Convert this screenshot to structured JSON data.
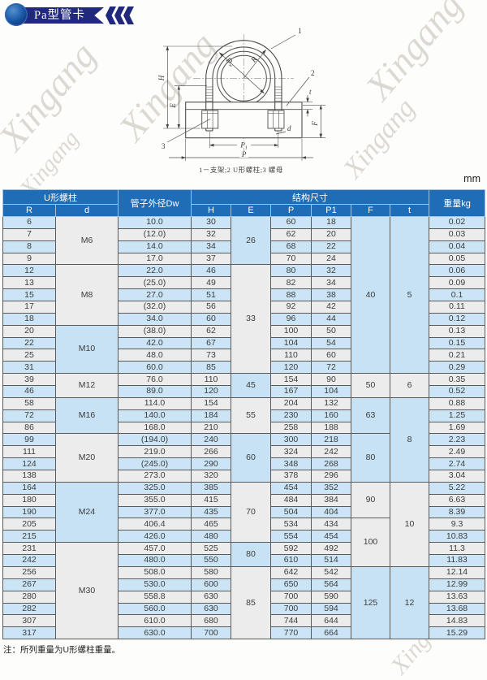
{
  "page": {
    "title": "Pa型管卡",
    "unit_label": "mm",
    "note": "注：所列重量为U形螺柱重量。",
    "watermark": "Xingang"
  },
  "diagram": {
    "caption": "1－支架;2  U形螺柱;3  螺母",
    "labels": {
      "h": "H",
      "e": "E",
      "dw": "D",
      "dw_sub": "w",
      "r": "R",
      "p": "P",
      "p1": "P",
      "p1_sub": "1",
      "d": "d",
      "t": "t",
      "f": "F",
      "n1": "1",
      "n2": "2",
      "n3": "3"
    }
  },
  "table": {
    "header": {
      "u_bolt": "U形螺柱",
      "pipe_od": "管子外径Dw",
      "struct": "结构尺寸",
      "weight": "重量kg",
      "sub": [
        "R",
        "d",
        "H",
        "E",
        "P",
        "P1",
        "F",
        "t"
      ]
    },
    "rows": [
      [
        "6",
        "10.0",
        "30",
        "60",
        "18",
        "0.02"
      ],
      [
        "7",
        "(12.0)",
        "32",
        "62",
        "20",
        "0.03"
      ],
      [
        "8",
        "14.0",
        "34",
        "68",
        "22",
        "0.04"
      ],
      [
        "9",
        "17.0",
        "37",
        "70",
        "24",
        "0.05"
      ],
      [
        "12",
        "22.0",
        "46",
        "80",
        "32",
        "0.06"
      ],
      [
        "13",
        "(25.0)",
        "49",
        "82",
        "34",
        "0.09"
      ],
      [
        "15",
        "27.0",
        "51",
        "88",
        "38",
        "0.1"
      ],
      [
        "17",
        "(32.0)",
        "56",
        "92",
        "42",
        "0.11"
      ],
      [
        "18",
        "34.0",
        "60",
        "96",
        "44",
        "0.12"
      ],
      [
        "20",
        "(38.0)",
        "62",
        "100",
        "50",
        "0.13"
      ],
      [
        "22",
        "42.0",
        "67",
        "104",
        "54",
        "0.15"
      ],
      [
        "25",
        "48.0",
        "73",
        "110",
        "60",
        "0.21"
      ],
      [
        "31",
        "60.0",
        "85",
        "120",
        "72",
        "0.29"
      ],
      [
        "39",
        "76.0",
        "110",
        "154",
        "90",
        "0.35"
      ],
      [
        "46",
        "89.0",
        "120",
        "167",
        "104",
        "0.52"
      ],
      [
        "58",
        "114.0",
        "154",
        "204",
        "132",
        "0.88"
      ],
      [
        "72",
        "140.0",
        "184",
        "230",
        "160",
        "1.25"
      ],
      [
        "86",
        "168.0",
        "210",
        "258",
        "188",
        "1.69"
      ],
      [
        "99",
        "(194.0)",
        "240",
        "300",
        "218",
        "2.23"
      ],
      [
        "111",
        "219.0",
        "266",
        "324",
        "242",
        "2.49"
      ],
      [
        "124",
        "(245.0)",
        "290",
        "348",
        "268",
        "2.74"
      ],
      [
        "138",
        "273.0",
        "320",
        "378",
        "296",
        "3.04"
      ],
      [
        "164",
        "325.0",
        "385",
        "454",
        "352",
        "5.22"
      ],
      [
        "180",
        "355.0",
        "415",
        "484",
        "384",
        "6.63"
      ],
      [
        "190",
        "377.0",
        "435",
        "504",
        "404",
        "8.39"
      ],
      [
        "205",
        "406.4",
        "465",
        "534",
        "434",
        "9.3"
      ],
      [
        "215",
        "426.0",
        "480",
        "554",
        "454",
        "10.83"
      ],
      [
        "231",
        "457.0",
        "525",
        "592",
        "492",
        "11.3"
      ],
      [
        "242",
        "480.0",
        "550",
        "610",
        "514",
        "11.83"
      ],
      [
        "256",
        "508.0",
        "580",
        "642",
        "542",
        "12.14"
      ],
      [
        "267",
        "530.0",
        "600",
        "650",
        "564",
        "12.99"
      ],
      [
        "280",
        "558.8",
        "630",
        "700",
        "590",
        "13.63"
      ],
      [
        "282",
        "560.0",
        "630",
        "700",
        "594",
        "13.68"
      ],
      [
        "307",
        "610.0",
        "680",
        "744",
        "644",
        "14.83"
      ],
      [
        "317",
        "630.0",
        "700",
        "770",
        "664",
        "15.29"
      ]
    ],
    "d_groups": [
      {
        "label": "M6",
        "span": 4,
        "bg": "mg"
      },
      {
        "label": "M8",
        "span": 5,
        "bg": "mg"
      },
      {
        "label": "M10",
        "span": 4,
        "bg": "mb"
      },
      {
        "label": "M12",
        "span": 2,
        "bg": "mg"
      },
      {
        "label": "M16",
        "span": 3,
        "bg": "mb"
      },
      {
        "label": "M20",
        "span": 4,
        "bg": "mg"
      },
      {
        "label": "M24",
        "span": 5,
        "bg": "mb"
      },
      {
        "label": "M30",
        "span": 8,
        "bg": "mg"
      }
    ],
    "e_groups": [
      {
        "label": "26",
        "span": 4,
        "bg": "mb"
      },
      {
        "label": "33",
        "span": 9,
        "bg": "mg"
      },
      {
        "label": "45",
        "span": 2,
        "bg": "mb"
      },
      {
        "label": "55",
        "span": 3,
        "bg": "mg"
      },
      {
        "label": "60",
        "span": 4,
        "bg": "mb"
      },
      {
        "label": "70",
        "span": 5,
        "bg": "mg"
      },
      {
        "label": "80",
        "span": 2,
        "bg": "mb"
      },
      {
        "label": "85",
        "span": 6,
        "bg": "mg"
      }
    ],
    "f_groups": [
      {
        "label": "40",
        "span": 13,
        "bg": "mb"
      },
      {
        "label": "50",
        "span": 2,
        "bg": "mg"
      },
      {
        "label": "63",
        "span": 3,
        "bg": "mb"
      },
      {
        "label": "80",
        "span": 4,
        "bg": "mb"
      },
      {
        "label": "90",
        "span": 3,
        "bg": "mg"
      },
      {
        "label": "100",
        "span": 4,
        "bg": "mg"
      },
      {
        "label": "125",
        "span": 6,
        "bg": "mb"
      }
    ],
    "t_groups": [
      {
        "label": "5",
        "span": 13,
        "bg": "mb"
      },
      {
        "label": "6",
        "span": 2,
        "bg": "mg"
      },
      {
        "label": "8",
        "span": 7,
        "bg": "mb"
      },
      {
        "label": "10",
        "span": 7,
        "bg": "mg"
      },
      {
        "label": "12",
        "span": 6,
        "bg": "mb"
      }
    ],
    "colors": {
      "header_blue": "#1f6db6",
      "row_blue": "#cbe5f6",
      "row_gray": "#ececec",
      "banner_navy": "#20297b"
    }
  }
}
